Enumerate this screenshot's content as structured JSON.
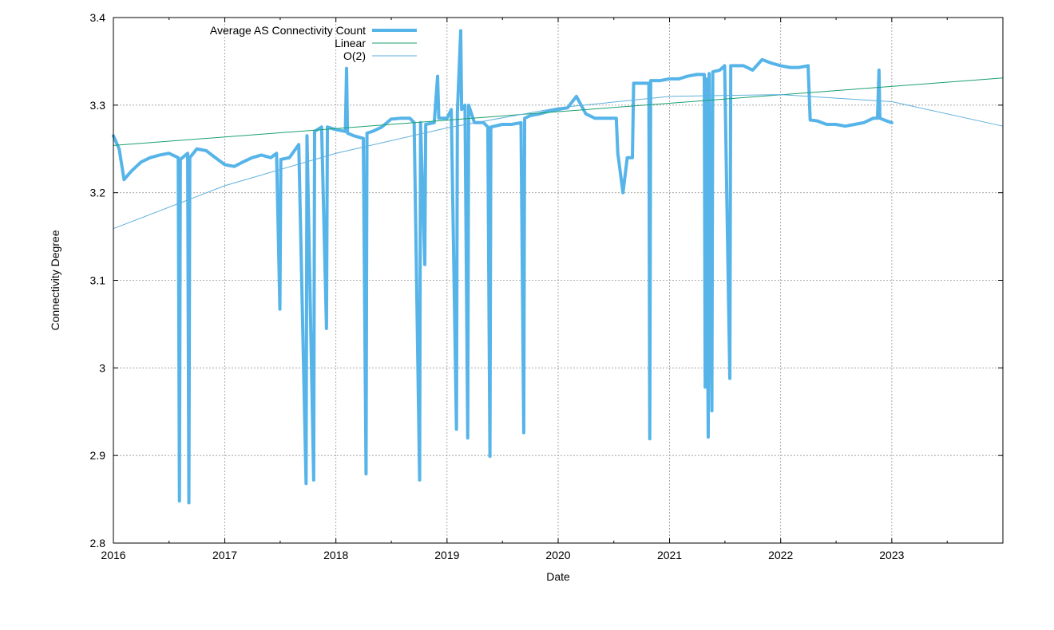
{
  "chart_data": {
    "type": "line",
    "xlabel": "Date",
    "ylabel": "Connectivity Degree",
    "xlim": [
      "2016-01-01",
      "2024-01-01"
    ],
    "ylim": [
      2.8,
      3.4
    ],
    "x_ticks": [
      "2016",
      "2017",
      "2018",
      "2019",
      "2020",
      "2021",
      "2022",
      "2023"
    ],
    "y_ticks": [
      "2.8",
      "2.9",
      "3",
      "3.1",
      "3.2",
      "3.3",
      "3.4"
    ],
    "grid": true,
    "legend_position": "top-left",
    "series": [
      {
        "name": "Average AS Connectivity Count",
        "color": "#56b4e9",
        "points": [
          [
            "2016-01-01",
            3.265
          ],
          [
            "2016-01-20",
            3.25
          ],
          [
            "2016-02-05",
            3.215
          ],
          [
            "2016-03-01",
            3.225
          ],
          [
            "2016-04-01",
            3.235
          ],
          [
            "2016-05-01",
            3.24
          ],
          [
            "2016-06-01",
            3.243
          ],
          [
            "2016-07-01",
            3.245
          ],
          [
            "2016-08-01",
            3.24
          ],
          [
            "2016-08-05",
            2.848
          ],
          [
            "2016-08-08",
            3.238
          ],
          [
            "2016-09-01",
            3.245
          ],
          [
            "2016-09-05",
            2.846
          ],
          [
            "2016-09-08",
            3.24
          ],
          [
            "2016-10-01",
            3.25
          ],
          [
            "2016-11-01",
            3.248
          ],
          [
            "2016-12-01",
            3.24
          ],
          [
            "2017-01-01",
            3.232
          ],
          [
            "2017-02-01",
            3.23
          ],
          [
            "2017-03-01",
            3.235
          ],
          [
            "2017-04-01",
            3.24
          ],
          [
            "2017-05-01",
            3.243
          ],
          [
            "2017-06-01",
            3.24
          ],
          [
            "2017-06-20",
            3.245
          ],
          [
            "2017-07-01",
            3.067
          ],
          [
            "2017-07-04",
            3.238
          ],
          [
            "2017-08-01",
            3.24
          ],
          [
            "2017-09-01",
            3.255
          ],
          [
            "2017-09-25",
            2.868
          ],
          [
            "2017-09-28",
            3.265
          ],
          [
            "2017-10-20",
            2.872
          ],
          [
            "2017-10-23",
            3.27
          ],
          [
            "2017-11-15",
            3.275
          ],
          [
            "2017-12-01",
            3.045
          ],
          [
            "2017-12-04",
            3.275
          ],
          [
            "2018-01-01",
            3.272
          ],
          [
            "2018-02-01",
            3.27
          ],
          [
            "2018-02-05",
            3.342
          ],
          [
            "2018-02-08",
            3.268
          ],
          [
            "2018-03-01",
            3.265
          ],
          [
            "2018-04-01",
            3.262
          ],
          [
            "2018-04-10",
            2.879
          ],
          [
            "2018-04-13",
            3.268
          ],
          [
            "2018-05-01",
            3.27
          ],
          [
            "2018-06-01",
            3.275
          ],
          [
            "2018-07-01",
            3.284
          ],
          [
            "2018-08-01",
            3.285
          ],
          [
            "2018-09-01",
            3.285
          ],
          [
            "2018-09-15",
            3.28
          ],
          [
            "2018-10-03",
            2.872
          ],
          [
            "2018-10-06",
            3.28
          ],
          [
            "2018-10-20",
            3.118
          ],
          [
            "2018-10-23",
            3.278
          ],
          [
            "2018-11-20",
            3.28
          ],
          [
            "2018-12-01",
            3.333
          ],
          [
            "2018-12-05",
            3.285
          ],
          [
            "2019-01-01",
            3.285
          ],
          [
            "2019-01-15",
            3.295
          ],
          [
            "2019-02-01",
            2.93
          ],
          [
            "2019-02-04",
            3.292
          ],
          [
            "2019-02-15",
            3.385
          ],
          [
            "2019-02-18",
            3.295
          ],
          [
            "2019-03-01",
            3.3
          ],
          [
            "2019-03-10",
            2.92
          ],
          [
            "2019-03-13",
            3.3
          ],
          [
            "2019-04-01",
            3.28
          ],
          [
            "2019-05-01",
            3.28
          ],
          [
            "2019-05-15",
            3.275
          ],
          [
            "2019-05-22",
            2.899
          ],
          [
            "2019-05-25",
            3.275
          ],
          [
            "2019-07-01",
            3.278
          ],
          [
            "2019-08-01",
            3.278
          ],
          [
            "2019-09-01",
            3.28
          ],
          [
            "2019-09-10",
            2.926
          ],
          [
            "2019-09-13",
            3.285
          ],
          [
            "2019-10-01",
            3.288
          ],
          [
            "2019-11-01",
            3.29
          ],
          [
            "2019-12-01",
            3.293
          ],
          [
            "2020-01-01",
            3.295
          ],
          [
            "2020-02-01",
            3.297
          ],
          [
            "2020-03-01",
            3.31
          ],
          [
            "2020-04-01",
            3.29
          ],
          [
            "2020-05-01",
            3.285
          ],
          [
            "2020-06-01",
            3.285
          ],
          [
            "2020-07-10",
            3.285
          ],
          [
            "2020-07-15",
            3.245
          ],
          [
            "2020-08-01",
            3.2
          ],
          [
            "2020-08-15",
            3.24
          ],
          [
            "2020-09-01",
            3.24
          ],
          [
            "2020-09-05",
            3.325
          ],
          [
            "2020-10-01",
            3.325
          ],
          [
            "2020-10-25",
            3.325
          ],
          [
            "2020-10-28",
            2.919
          ],
          [
            "2020-10-31",
            3.328
          ],
          [
            "2020-12-01",
            3.328
          ],
          [
            "2021-01-01",
            3.33
          ],
          [
            "2021-02-01",
            3.33
          ],
          [
            "2021-03-01",
            3.333
          ],
          [
            "2021-04-01",
            3.335
          ],
          [
            "2021-04-25",
            3.335
          ],
          [
            "2021-04-28",
            2.978
          ],
          [
            "2021-05-01",
            3.33
          ],
          [
            "2021-05-08",
            2.921
          ],
          [
            "2021-05-11",
            3.336
          ],
          [
            "2021-05-20",
            2.951
          ],
          [
            "2021-05-23",
            3.338
          ],
          [
            "2021-06-15",
            3.34
          ],
          [
            "2021-07-01",
            3.345
          ],
          [
            "2021-07-18",
            2.988
          ],
          [
            "2021-07-21",
            3.345
          ],
          [
            "2021-08-15",
            3.345
          ],
          [
            "2021-09-01",
            3.345
          ],
          [
            "2021-10-01",
            3.34
          ],
          [
            "2021-11-01",
            3.352
          ],
          [
            "2021-12-01",
            3.348
          ],
          [
            "2022-01-01",
            3.345
          ],
          [
            "2022-02-01",
            3.343
          ],
          [
            "2022-03-01",
            3.343
          ],
          [
            "2022-04-01",
            3.345
          ],
          [
            "2022-04-08",
            3.283
          ],
          [
            "2022-05-01",
            3.282
          ],
          [
            "2022-06-01",
            3.278
          ],
          [
            "2022-07-01",
            3.278
          ],
          [
            "2022-08-01",
            3.276
          ],
          [
            "2022-09-01",
            3.278
          ],
          [
            "2022-10-01",
            3.28
          ],
          [
            "2022-11-01",
            3.285
          ],
          [
            "2022-11-15",
            3.285
          ],
          [
            "2022-11-20",
            3.34
          ],
          [
            "2022-11-23",
            3.285
          ],
          [
            "2022-12-15",
            3.282
          ],
          [
            "2023-01-01",
            3.28
          ]
        ]
      },
      {
        "name": "Linear",
        "color": "#1aa06e",
        "points": [
          [
            "2016-01-01",
            3.254
          ],
          [
            "2024-01-01",
            3.331
          ]
        ]
      },
      {
        "name": "O(2)",
        "color": "#5fb0dc",
        "points": [
          [
            "2016-01-01",
            3.159
          ],
          [
            "2017-01-01",
            3.208
          ],
          [
            "2018-01-01",
            3.245
          ],
          [
            "2019-01-01",
            3.274
          ],
          [
            "2020-01-01",
            3.297
          ],
          [
            "2021-01-01",
            3.31
          ],
          [
            "2022-01-01",
            3.312
          ],
          [
            "2023-01-01",
            3.304
          ],
          [
            "2024-01-01",
            3.276
          ]
        ]
      }
    ]
  }
}
